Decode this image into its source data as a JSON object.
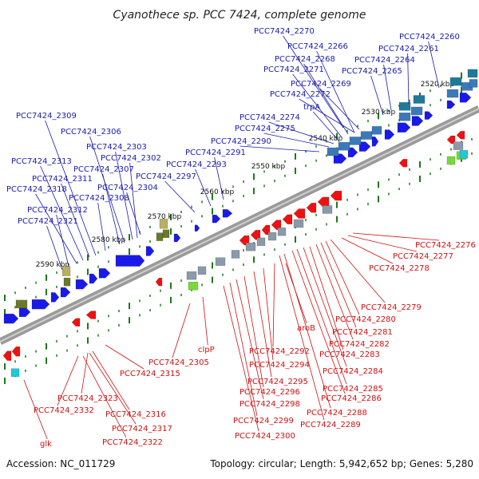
{
  "title": "Cyanothece sp. PCC 7424, complete genome",
  "footer": {
    "accession": "Accession: NC_011729",
    "summary": "Topology: circular; Length: 5,942,652 bp; Genes: 5,280"
  },
  "colors": {
    "forward": "#1a1ae8",
    "reverse": "#ee1111",
    "backbone": "#9a9a9a",
    "tick": "#1a7a1a",
    "forward_label": "#1a1ab0",
    "reverse_label": "#d01010"
  },
  "kbp_ticks": [
    "2520 kbp",
    "2530 kbp",
    "2540 kbp",
    "2550 kbp",
    "2560 kbp",
    "2570 kbp",
    "2580 kbp",
    "2590 kbp"
  ],
  "forward_labels": [
    "PCC7424_2270",
    "PCC7424_2260",
    "PCC7424_2266",
    "PCC7424_2261",
    "PCC7424_2268",
    "PCC7424_2264",
    "PCC7424_2271",
    "PCC7424_2265",
    "PCC7424_2269",
    "PCC7424_2272",
    "trpA",
    "PCC7424_2274",
    "PCC7424_2275",
    "PCC7424_2290",
    "PCC7424_2291",
    "PCC7424_2293",
    "PCC7424_2297",
    "PCC7424_2309",
    "PCC7424_2306",
    "PCC7424_2303",
    "PCC7424_2302",
    "PCC7424_2307",
    "PCC7424_2313",
    "PCC7424_2311",
    "PCC7424_2304",
    "PCC7424_2318",
    "PCC7424_2308",
    "PCC7424_2312",
    "PCC7424_2321"
  ],
  "reverse_labels": [
    "PCC7424_2276",
    "PCC7424_2277",
    "PCC7424_2278",
    "PCC7424_2279",
    "PCC7424_2280",
    "PCC7424_2281",
    "aroB",
    "PCC7424_2282",
    "PCC7424_2283",
    "PCC7424_2292",
    "clpP",
    "PCC7424_2284",
    "PCC7424_2305",
    "PCC7424_2294",
    "PCC7424_2315",
    "PCC7424_2295",
    "PCC7424_2285",
    "PCC7424_2296",
    "PCC7424_2286",
    "PCC7424_2323",
    "PCC7424_2298",
    "PCC7424_2332",
    "PCC7424_2288",
    "PCC7424_2316",
    "PCC7424_2299",
    "PCC7424_2289",
    "PCC7424_2317",
    "PCC7424_2300",
    "glk",
    "PCC7424_2322"
  ]
}
